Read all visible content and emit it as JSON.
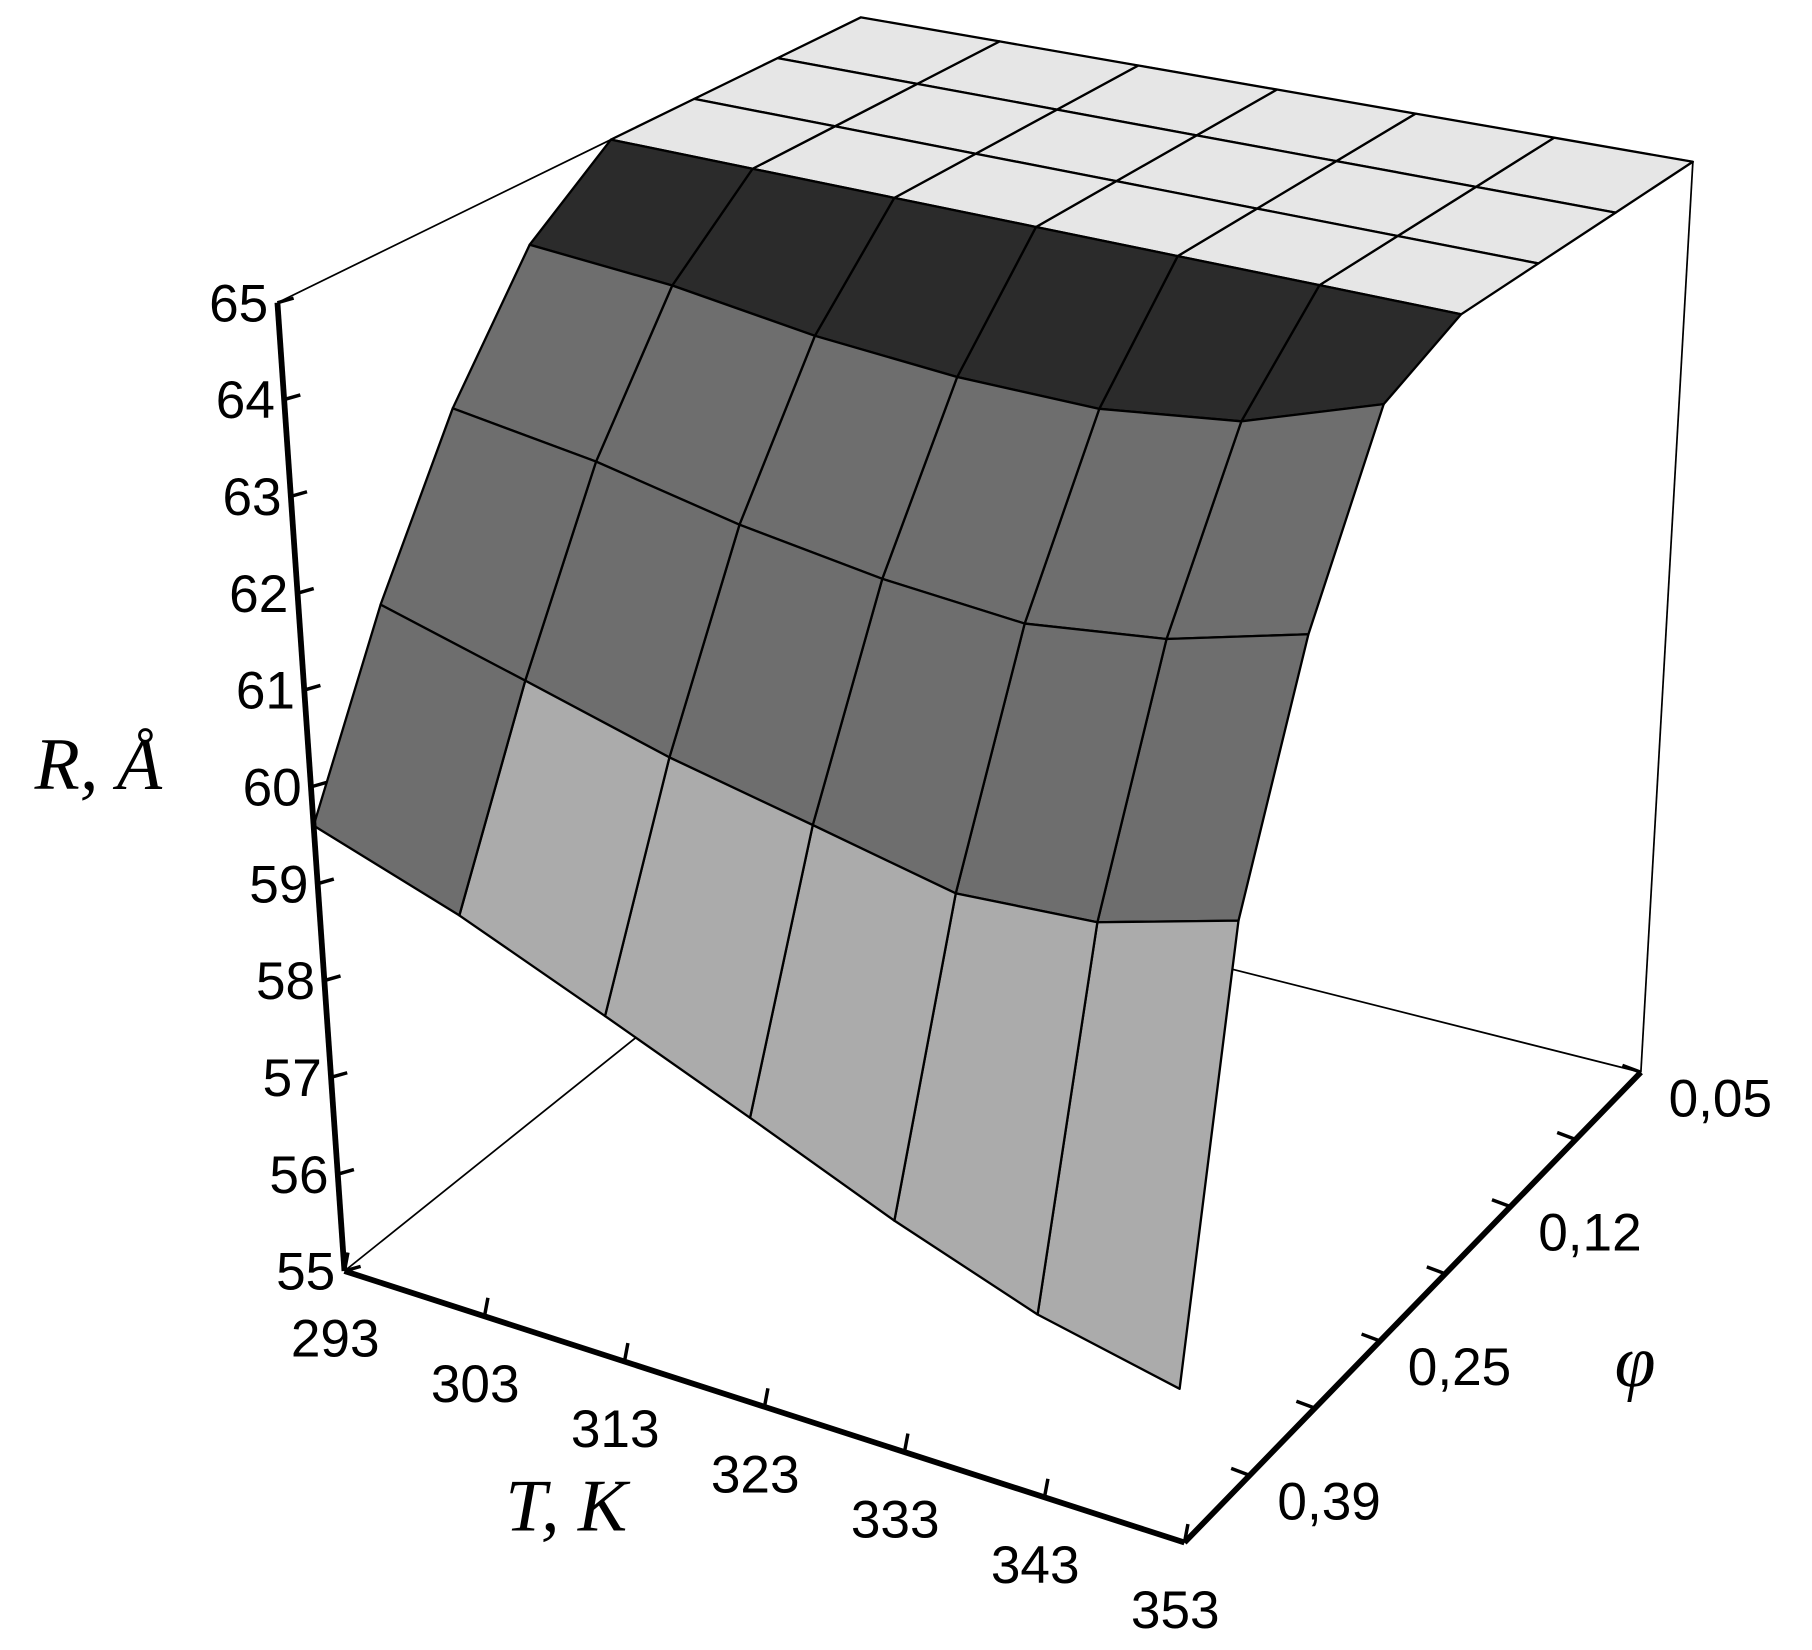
{
  "chart_data": {
    "type": "surface",
    "x_label": "T, K",
    "y_label": "φ",
    "z_label": "R, Å",
    "x": [
      293,
      303,
      313,
      323,
      333,
      343,
      353
    ],
    "xlim": [
      293,
      353
    ],
    "xticks": [
      293,
      303,
      313,
      323,
      333,
      343,
      353
    ],
    "y": [
      "0,05",
      null,
      "0,12",
      null,
      "0,25",
      null,
      "0,39",
      null
    ],
    "zlim": [
      55,
      65
    ],
    "zticks": [
      55,
      56,
      57,
      58,
      59,
      60,
      61,
      62,
      63,
      64,
      65
    ],
    "z": [
      [
        65,
        65,
        65,
        65,
        65,
        65,
        65
      ],
      [
        65,
        65,
        65,
        65,
        65,
        65,
        65
      ],
      [
        65,
        65,
        65,
        65,
        65,
        65,
        65
      ],
      [
        65,
        65,
        65,
        65,
        65,
        65,
        65
      ],
      [
        64.3,
        64.2,
        64.0,
        63.9,
        63.9,
        64.1,
        64.6
      ],
      [
        63.0,
        62.8,
        62.5,
        62.3,
        62.2,
        62.4,
        62.8
      ],
      [
        61.4,
        61.0,
        60.6,
        60.3,
        60.0,
        60.1,
        60.5
      ],
      [
        59.6,
        59.1,
        58.5,
        57.9,
        57.3,
        56.8,
        56.5
      ]
    ],
    "surface_colors": [
      "#ababab",
      "#6e6e6e",
      "#2b2b2b",
      "#e6e6e6"
    ]
  }
}
